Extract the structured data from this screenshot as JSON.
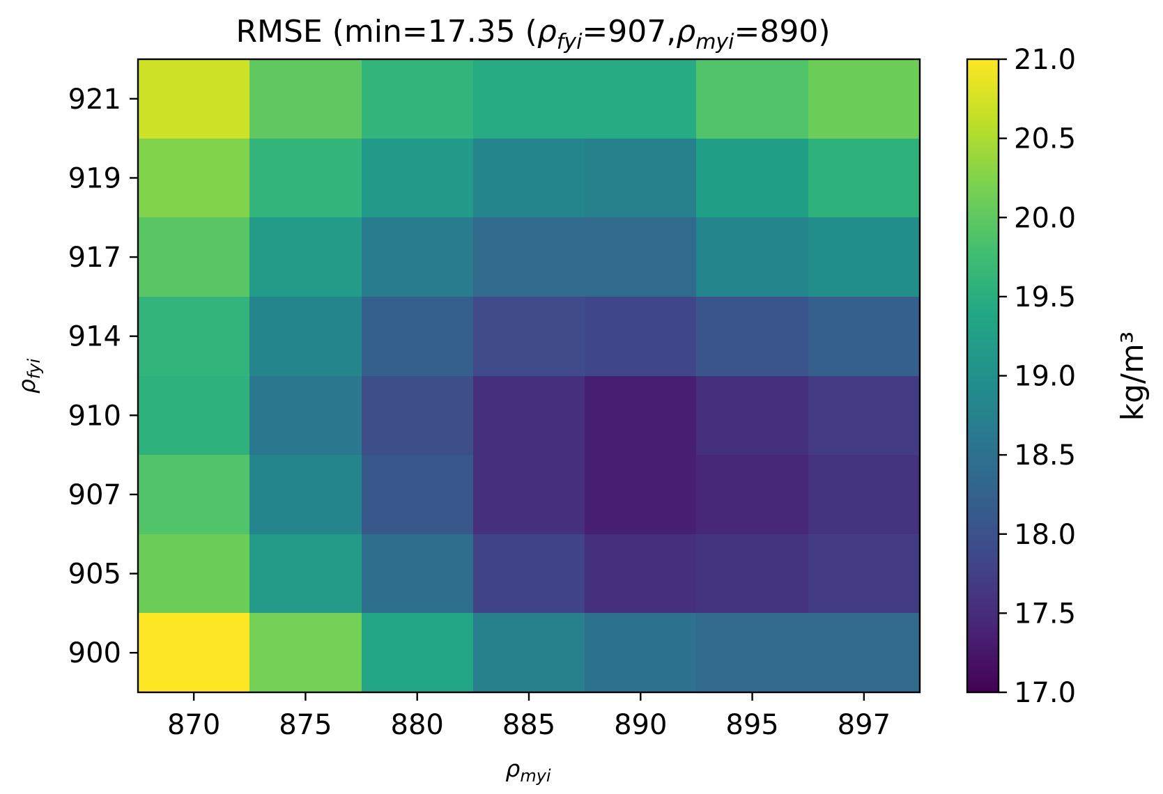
{
  "chart_data": {
    "type": "heatmap",
    "title": {
      "prefix": "RMSE (min=17.35 (",
      "rho1": "ρ",
      "sub1": "fyi",
      "eq1": "=907,",
      "rho2": "ρ",
      "sub2": "myi",
      "eq2": "=890)"
    },
    "xlabel": {
      "main": "ρ",
      "sub": "myi"
    },
    "ylabel": {
      "main": "ρ",
      "sub": "fyi"
    },
    "x_categories": [
      "870",
      "875",
      "880",
      "885",
      "890",
      "895",
      "897"
    ],
    "y_categories": [
      "921",
      "919",
      "917",
      "914",
      "910",
      "907",
      "905",
      "900"
    ],
    "values": [
      [
        20.7,
        20.0,
        19.6,
        19.45,
        19.45,
        19.9,
        20.1
      ],
      [
        20.25,
        19.6,
        19.15,
        18.8,
        18.75,
        19.25,
        19.55
      ],
      [
        19.95,
        19.2,
        18.65,
        18.4,
        18.4,
        18.8,
        18.95
      ],
      [
        19.6,
        18.8,
        18.2,
        17.9,
        17.85,
        18.05,
        18.2
      ],
      [
        19.55,
        18.6,
        17.95,
        17.55,
        17.35,
        17.55,
        17.7
      ],
      [
        19.9,
        18.8,
        18.1,
        17.55,
        17.35,
        17.45,
        17.6
      ],
      [
        20.1,
        19.2,
        18.45,
        17.8,
        17.55,
        17.6,
        17.7
      ],
      [
        21.0,
        20.15,
        19.35,
        18.75,
        18.5,
        18.4,
        18.4
      ]
    ],
    "colorbar": {
      "min": 17.0,
      "max": 21.0,
      "ticks": [
        "17.0",
        "17.5",
        "18.0",
        "18.5",
        "19.0",
        "19.5",
        "20.0",
        "20.5",
        "21.0"
      ],
      "label": "kg/m³",
      "colormap": "viridis"
    }
  }
}
